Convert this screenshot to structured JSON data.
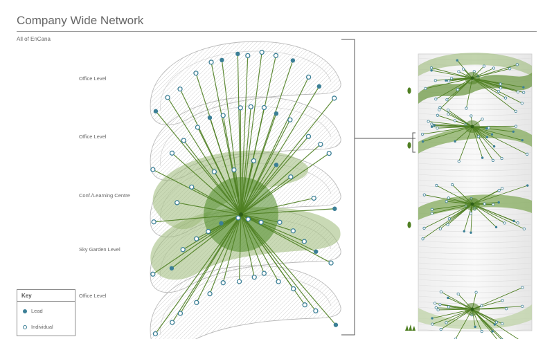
{
  "title": "Company Wide Network",
  "subtitle": "All of EnCana",
  "floors": [
    {
      "id": "office-top",
      "label": "Office Level"
    },
    {
      "id": "office-upper",
      "label": "Office Level"
    },
    {
      "id": "conference",
      "label": "Conf./Learning Centre"
    },
    {
      "id": "sky-garden",
      "label": "Sky Garden Level"
    },
    {
      "id": "office-bottom",
      "label": "Office Level"
    }
  ],
  "key": {
    "title": "Key",
    "items": [
      {
        "symbol": "filled-circle",
        "label": "Lead"
      },
      {
        "symbol": "open-circle",
        "label": "Individual"
      }
    ]
  },
  "colors": {
    "link": "#4f7f22",
    "hub": "#3f7a1f",
    "lead": "#3b7f96",
    "individual": "#3b7f96",
    "highlight": "#9cba79",
    "text": "#666666"
  }
}
